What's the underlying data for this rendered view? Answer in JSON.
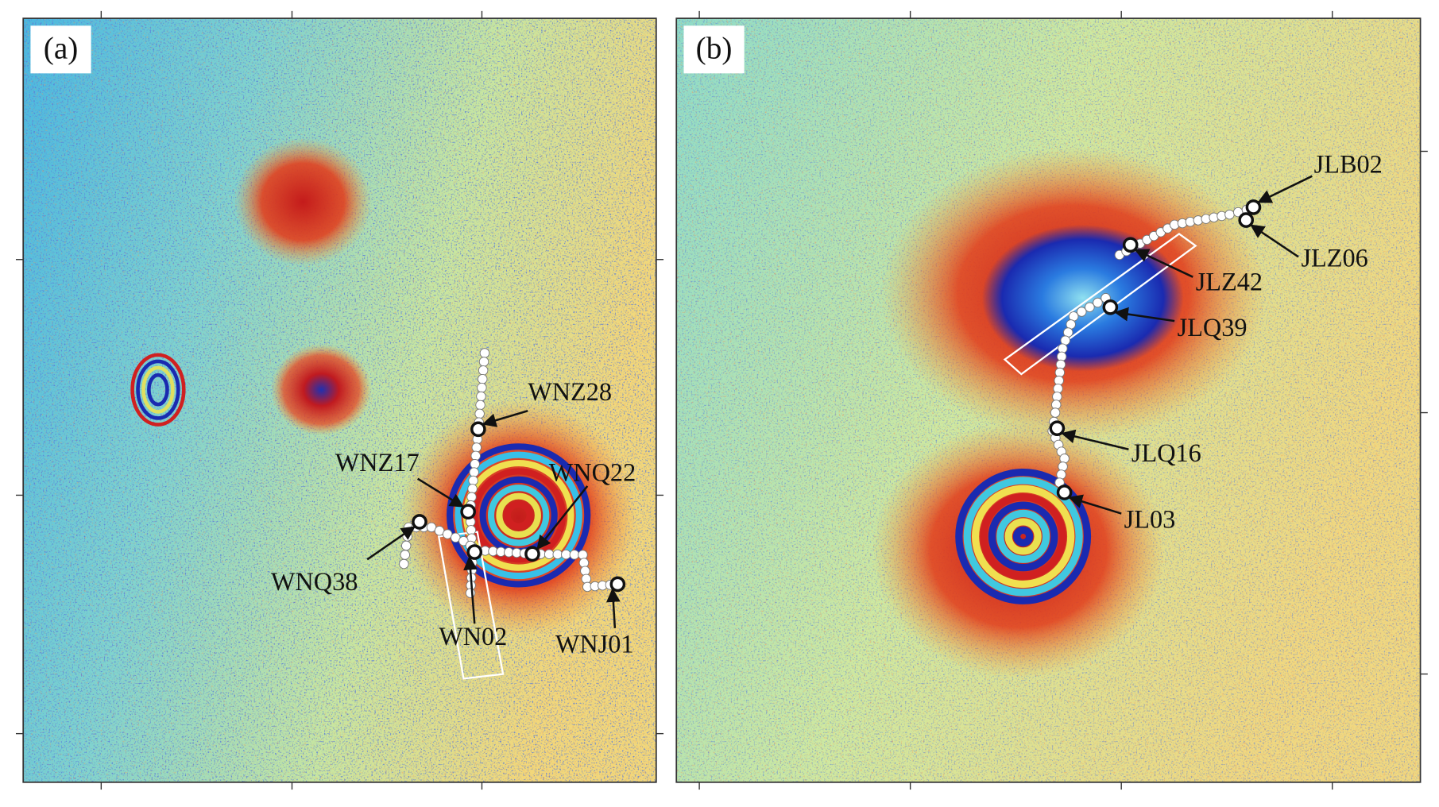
{
  "panels": [
    {
      "label": "(a)",
      "stations": [
        "WNZ28",
        "WNZ17",
        "WNQ22",
        "WNQ38",
        "WN02",
        "WNJ01"
      ]
    },
    {
      "label": "(b)",
      "stations": [
        "JLB02",
        "JLZ06",
        "JLZ42",
        "JLQ39",
        "JLQ16",
        "JL03"
      ]
    }
  ]
}
